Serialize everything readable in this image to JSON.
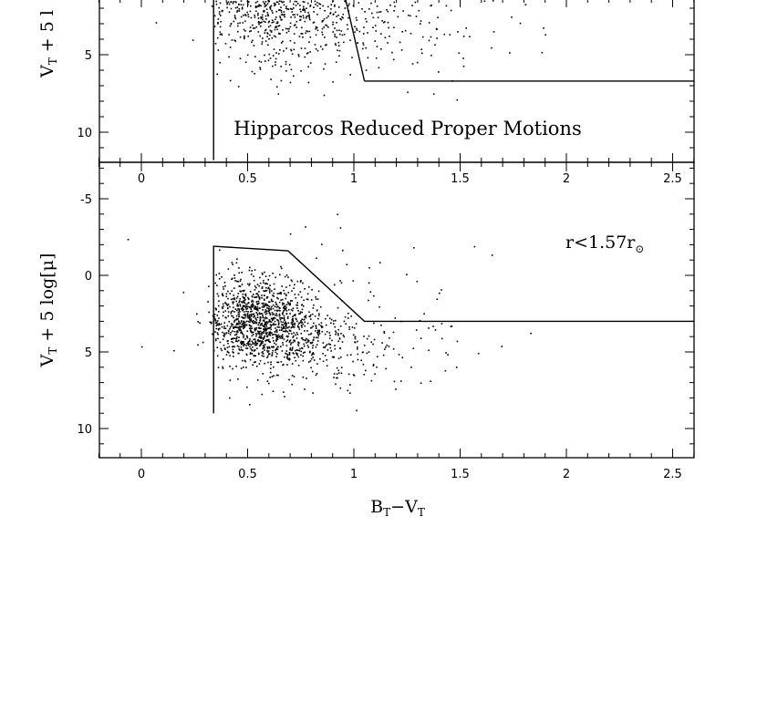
{
  "chart_data": [
    {
      "type": "scatter",
      "panel": "upper",
      "title": "Hipparcos Reduced Proper Motions",
      "ylabel": {
        "main": "V",
        "sub": "T",
        "rest": " + 5 l"
      },
      "xlim": [
        -0.2,
        2.6
      ],
      "ylim_visible": [
        -2.2,
        11.8
      ],
      "y_inverted": true,
      "x_ticks": [
        "0",
        "0.5",
        "1",
        "1.5",
        "2",
        "2.5"
      ],
      "x_tick_values": [
        0,
        0.5,
        1,
        1.5,
        2,
        2.5
      ],
      "y_ticks": [
        "5",
        "10"
      ],
      "y_tick_values": [
        5,
        10
      ],
      "boundary_line": [
        [
          0.34,
          11.8
        ],
        [
          0.34,
          -2.2
        ]
      ],
      "boundary_line_2": [
        [
          1.05,
          6.7
        ],
        [
          2.6,
          6.7
        ]
      ],
      "boundary_line_3": [
        [
          0.9,
          -2.2
        ],
        [
          1.05,
          6.7
        ]
      ],
      "clusters": [
        {
          "cx": 0.55,
          "cy": 0.6,
          "sx": 0.17,
          "sy": 2.2,
          "n": 900
        },
        {
          "cx": 0.8,
          "cy": 1.8,
          "sx": 0.25,
          "sy": 2.4,
          "n": 450
        },
        {
          "cx": 1.25,
          "cy": 2.5,
          "sx": 0.35,
          "sy": 2.0,
          "n": 120
        }
      ]
    },
    {
      "type": "scatter",
      "panel": "lower",
      "annotation": {
        "main": "r<1.57r",
        "sub": "⊙"
      },
      "ylabel": {
        "main": "V",
        "sub": "T",
        "rest": " + 5 log[μ]"
      },
      "xlabel": {
        "b": "B",
        "bsub": "T",
        "dash": "−",
        "v": "V",
        "vsub": "T"
      },
      "xlim": [
        -0.2,
        2.6
      ],
      "ylim": [
        -7.2,
        11.8
      ],
      "y_inverted": true,
      "x_ticks": [
        "0",
        "0.5",
        "1",
        "1.5",
        "2",
        "2.5"
      ],
      "x_tick_values": [
        0,
        0.5,
        1,
        1.5,
        2,
        2.5
      ],
      "y_ticks": [
        "-5",
        "0",
        "5",
        "10"
      ],
      "y_tick_values": [
        -5,
        0,
        5,
        10
      ],
      "boundary_polyline": [
        [
          0.34,
          9.0
        ],
        [
          0.34,
          -1.9
        ],
        [
          0.69,
          -1.6
        ],
        [
          1.05,
          3.0
        ],
        [
          2.6,
          3.0
        ]
      ],
      "clusters": [
        {
          "cx": 0.52,
          "cy": 2.7,
          "sx": 0.12,
          "sy": 1.4,
          "n": 900
        },
        {
          "cx": 0.68,
          "cy": 3.8,
          "sx": 0.16,
          "sy": 1.6,
          "n": 500
        },
        {
          "cx": 0.95,
          "cy": 4.6,
          "sx": 0.25,
          "sy": 1.5,
          "n": 130
        },
        {
          "cx": 0.75,
          "cy": 2.0,
          "sx": 0.45,
          "sy": 3.0,
          "n": 60
        }
      ]
    }
  ]
}
